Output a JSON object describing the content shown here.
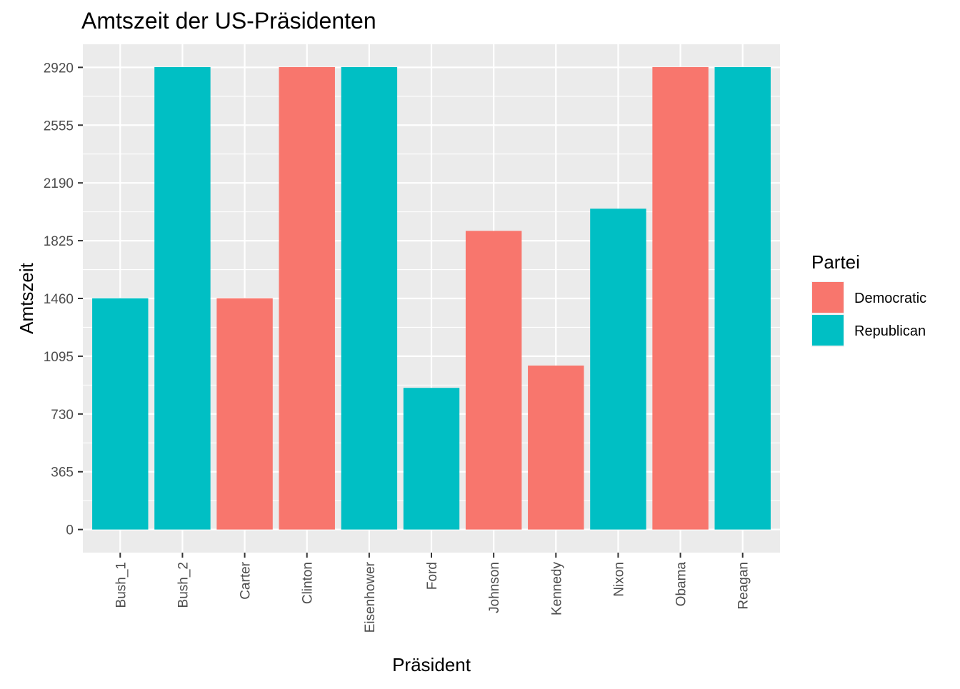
{
  "chart_data": {
    "type": "bar",
    "title": "Amtszeit der US-Präsidenten",
    "xlabel": "Präsident",
    "ylabel": "Amtszeit",
    "categories": [
      "Bush_1",
      "Bush_2",
      "Carter",
      "Clinton",
      "Eisenhower",
      "Ford",
      "Johnson",
      "Kennedy",
      "Nixon",
      "Obama",
      "Reagan"
    ],
    "values": [
      1461,
      2922,
      1461,
      2922,
      2922,
      895,
      1887,
      1036,
      2027,
      2922,
      2922
    ],
    "party": [
      "Republican",
      "Republican",
      "Democratic",
      "Democratic",
      "Republican",
      "Republican",
      "Democratic",
      "Democratic",
      "Republican",
      "Democratic",
      "Republican"
    ],
    "yticks": [
      0,
      365,
      730,
      1095,
      1460,
      1825,
      2190,
      2555,
      2920
    ],
    "ylim": [
      -146,
      3066
    ],
    "grid": true,
    "legend": {
      "title": "Partei",
      "position": "right",
      "entries": [
        {
          "label": "Democratic",
          "color": "#F8766D"
        },
        {
          "label": "Republican",
          "color": "#00BFC4"
        }
      ]
    },
    "colors": {
      "panel_background": "#EBEBEB",
      "grid": "#FFFFFF",
      "axis_text": "#4D4D4D",
      "tick": "#333333",
      "title": "#000000"
    }
  }
}
